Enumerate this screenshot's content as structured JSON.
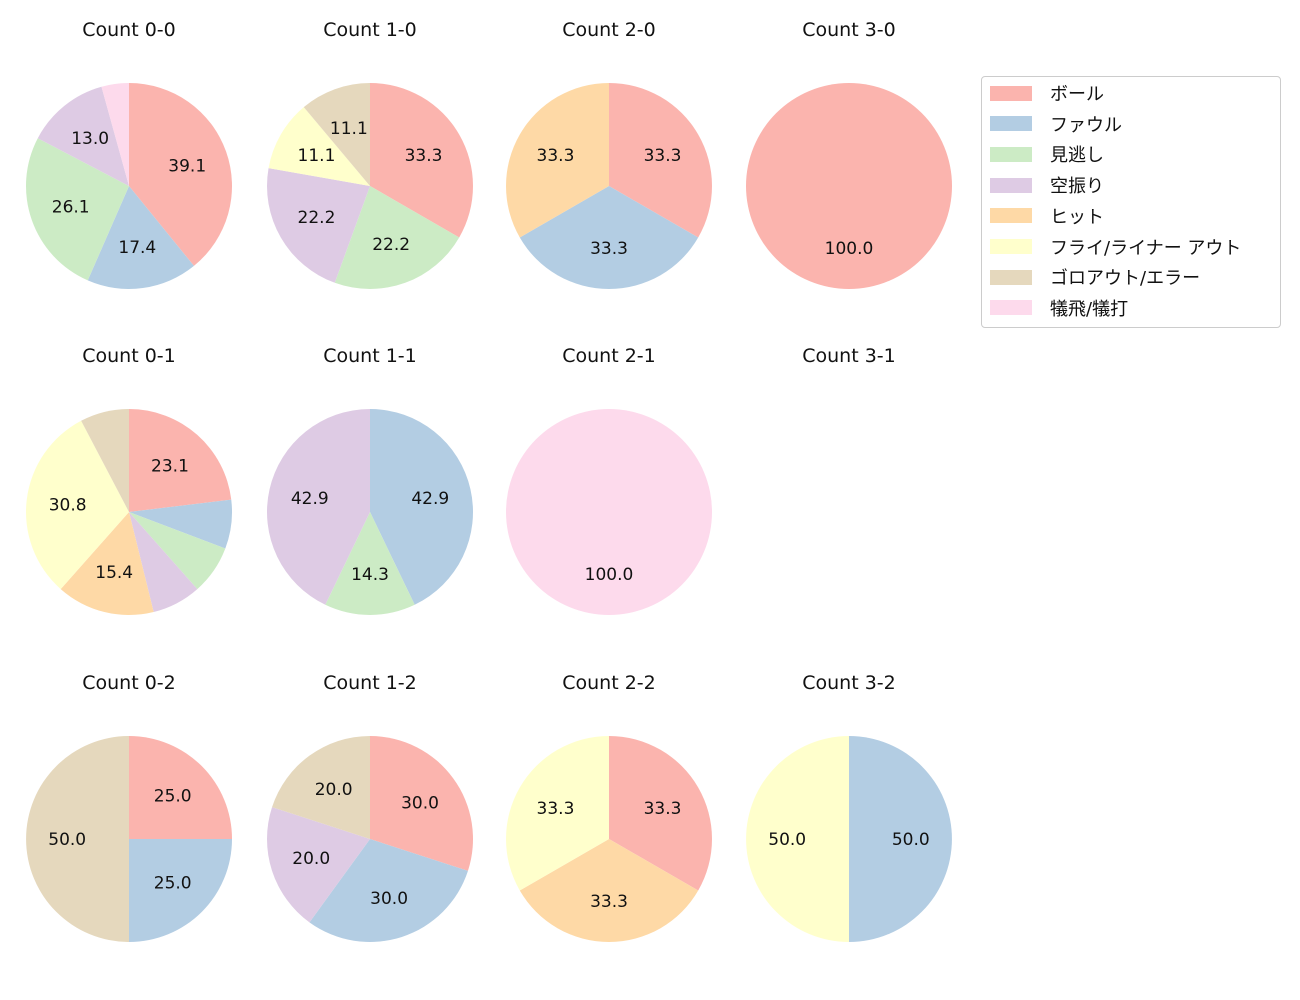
{
  "chart_data": {
    "type": "pie",
    "categories": [
      "ボール",
      "ファウル",
      "見逃し",
      "空振り",
      "ヒット",
      "フライ/ライナー アウト",
      "ゴロアウト/エラー",
      "犠飛/犠打"
    ],
    "colors": [
      "#fbb4ae",
      "#b3cde3",
      "#ccebc5",
      "#decbe4",
      "#fed9a6",
      "#ffffcc",
      "#e5d8bd",
      "#fddaec"
    ],
    "legend_position": "right",
    "start_angle": 90,
    "direction": "clockwise",
    "label_min_value": 10,
    "charts": [
      {
        "title": "Count 0-0",
        "values": [
          39.1,
          17.4,
          26.1,
          13.0,
          0,
          0,
          0,
          4.3
        ]
      },
      {
        "title": "Count 1-0",
        "values": [
          33.3,
          0,
          22.2,
          22.2,
          0,
          11.1,
          11.1,
          0
        ]
      },
      {
        "title": "Count 2-0",
        "values": [
          33.3,
          33.3,
          0,
          0,
          33.3,
          0,
          0,
          0
        ]
      },
      {
        "title": "Count 3-0",
        "values": [
          100.0,
          0,
          0,
          0,
          0,
          0,
          0,
          0
        ]
      },
      {
        "title": "Count 0-1",
        "values": [
          23.1,
          7.7,
          7.7,
          7.7,
          15.4,
          30.8,
          7.7,
          0
        ]
      },
      {
        "title": "Count 1-1",
        "values": [
          0,
          42.9,
          14.3,
          42.9,
          0,
          0,
          0,
          0
        ]
      },
      {
        "title": "Count 2-1",
        "values": [
          0,
          0,
          0,
          0,
          0,
          0,
          0,
          100.0
        ]
      },
      {
        "title": "Count 3-1",
        "values": []
      },
      {
        "title": "Count 0-2",
        "values": [
          25.0,
          25.0,
          0,
          0,
          0,
          0,
          50.0,
          0
        ]
      },
      {
        "title": "Count 1-2",
        "values": [
          30.0,
          30.0,
          0,
          20.0,
          0,
          0,
          20.0,
          0
        ]
      },
      {
        "title": "Count 2-2",
        "values": [
          33.3,
          0,
          0,
          0,
          33.3,
          33.3,
          0,
          0
        ]
      },
      {
        "title": "Count 3-2",
        "values": [
          0,
          50.0,
          0,
          0,
          0,
          50.0,
          0,
          0
        ]
      }
    ]
  }
}
